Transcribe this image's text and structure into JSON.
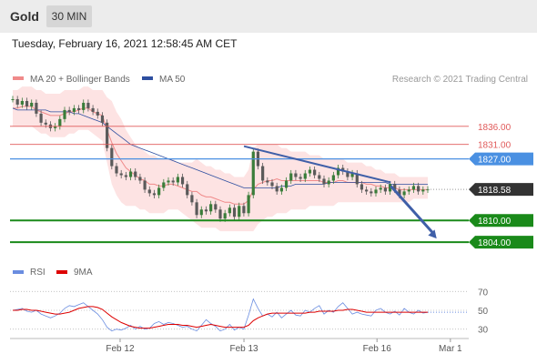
{
  "header": {
    "title": "Gold",
    "timeframe": "30 MIN"
  },
  "timestamp": "Tuesday, February 16, 2021 12:58:45 AM CET",
  "colors": {
    "resistance": "#e05a5a",
    "pivot": "#4a90e2",
    "support": "#1a8a1a",
    "price_tag": "#333333",
    "trendline": "#3f5fa8",
    "bollinger_fill": "#fde3e3",
    "ma20": "#f08a8a",
    "ma50": "#2e4fa0",
    "rsi": "#6a8de0",
    "rsi_ma": "#dd0000"
  },
  "chart_data": [
    {
      "type": "candlestick",
      "legend": [
        {
          "name": "MA 20 + Bollinger Bands",
          "color": "#f08a8a"
        },
        {
          "name": "MA 50",
          "color": "#2e4fa0"
        }
      ],
      "copyright": "Research © 2021 Trading Central",
      "ylim": [
        1800.5,
        1844.5
      ],
      "xlim": [
        0,
        100
      ],
      "x_ticks": [
        {
          "label": "Feb 12",
          "x": 24
        },
        {
          "label": "Feb 13",
          "x": 51
        },
        {
          "label": "Feb 16",
          "x": 80
        },
        {
          "label": "Mar 1",
          "x": 96
        }
      ],
      "levels": [
        {
          "label": "1836.00",
          "value": 1836.0,
          "kind": "resistance"
        },
        {
          "label": "1831.00",
          "value": 1831.0,
          "kind": "resistance"
        },
        {
          "label": "1827.00",
          "value": 1827.0,
          "kind": "pivot"
        },
        {
          "label": "1818.58",
          "value": 1818.58,
          "kind": "last_price"
        },
        {
          "label": "1810.00",
          "value": 1810.0,
          "kind": "support"
        },
        {
          "label": "1804.00",
          "value": 1804.0,
          "kind": "support"
        }
      ],
      "close": [
        1843.5,
        1842.0,
        1843.0,
        1841.5,
        1842.5,
        1839.5,
        1837.0,
        1836.5,
        1835.5,
        1836.0,
        1838.0,
        1840.5,
        1840.0,
        1841.0,
        1840.5,
        1842.5,
        1841.0,
        1840.0,
        1839.0,
        1837.0,
        1830.0,
        1825.0,
        1823.0,
        1822.5,
        1822.0,
        1823.5,
        1822.0,
        1821.0,
        1818.5,
        1817.5,
        1817.0,
        1819.0,
        1820.5,
        1821.0,
        1820.5,
        1822.0,
        1820.0,
        1817.0,
        1815.0,
        1811.5,
        1813.0,
        1812.5,
        1814.5,
        1813.0,
        1810.5,
        1812.0,
        1813.5,
        1811.0,
        1814.0,
        1812.0,
        1817.0,
        1829.0,
        1825.0,
        1821.0,
        1820.5,
        1819.5,
        1818.0,
        1819.0,
        1821.0,
        1823.0,
        1822.0,
        1821.5,
        1823.0,
        1824.0,
        1822.5,
        1821.5,
        1820.0,
        1821.0,
        1822.5,
        1824.5,
        1823.5,
        1822.0,
        1823.0,
        1820.0,
        1818.5,
        1818.0,
        1817.5,
        1818.5,
        1819.0,
        1818.0,
        1820.0,
        1818.5,
        1817.0,
        1818.0,
        1818.5,
        1819.5,
        1818.0,
        1818.5,
        1818.58
      ],
      "bollinger_upper": [
        1846,
        1846,
        1847,
        1847,
        1847,
        1846,
        1846,
        1845,
        1845,
        1845,
        1845,
        1846,
        1846,
        1846,
        1846,
        1847,
        1847,
        1846,
        1846,
        1846,
        1844,
        1843,
        1840,
        1838,
        1835,
        1833,
        1831,
        1830,
        1829,
        1828,
        1828,
        1827,
        1827,
        1827,
        1827,
        1826,
        1826,
        1826,
        1826,
        1827,
        1826,
        1825,
        1825,
        1824,
        1824,
        1823,
        1823,
        1822,
        1822,
        1822,
        1824,
        1830,
        1831,
        1831,
        1831,
        1831,
        1831,
        1830,
        1830,
        1829,
        1829,
        1829,
        1829,
        1828,
        1828,
        1828,
        1827,
        1827,
        1827,
        1827,
        1827,
        1826,
        1826,
        1826,
        1826,
        1825,
        1825,
        1824,
        1824,
        1823,
        1823,
        1823,
        1822,
        1822,
        1822,
        1822,
        1822,
        1822,
        1822
      ],
      "bollinger_lower": [
        1836,
        1836,
        1836,
        1836,
        1836,
        1835,
        1834,
        1834,
        1833,
        1833,
        1833,
        1833,
        1834,
        1834,
        1835,
        1835,
        1835,
        1834,
        1833,
        1832,
        1826,
        1820,
        1817,
        1815,
        1814,
        1814,
        1814,
        1813,
        1813,
        1812,
        1812,
        1812,
        1812,
        1813,
        1813,
        1813,
        1812,
        1811,
        1810,
        1809,
        1808,
        1808,
        1808,
        1808,
        1807,
        1807,
        1807,
        1807,
        1807,
        1807,
        1807,
        1807,
        1809,
        1810,
        1811,
        1811,
        1812,
        1812,
        1812,
        1813,
        1813,
        1813,
        1813,
        1814,
        1814,
        1814,
        1814,
        1814,
        1814,
        1815,
        1815,
        1815,
        1815,
        1815,
        1815,
        1815,
        1815,
        1815,
        1815,
        1815,
        1815,
        1815,
        1815,
        1815,
        1815,
        1816,
        1816,
        1816,
        1816
      ],
      "ma20": [
        1841,
        1841,
        1841.5,
        1841.5,
        1841.5,
        1840.5,
        1840,
        1839.5,
        1839,
        1839,
        1839,
        1839.5,
        1840,
        1840,
        1840.5,
        1841,
        1841,
        1840,
        1839.5,
        1839,
        1835,
        1831.5,
        1828.5,
        1826.5,
        1824.5,
        1823.5,
        1822.5,
        1821.5,
        1821,
        1820,
        1820,
        1819.5,
        1819.5,
        1820,
        1820,
        1819.5,
        1819,
        1818.5,
        1818,
        1818,
        1817,
        1816.5,
        1816.5,
        1816,
        1815.5,
        1815,
        1815,
        1814.5,
        1814.5,
        1814.5,
        1815.5,
        1818.5,
        1820,
        1820.5,
        1821,
        1821,
        1821.5,
        1821,
        1821,
        1821,
        1821,
        1821,
        1821,
        1821,
        1821,
        1821,
        1820.5,
        1820.5,
        1820.5,
        1821,
        1821,
        1820.5,
        1820.5,
        1820.5,
        1820.5,
        1820,
        1820,
        1819.5,
        1819.5,
        1819,
        1819,
        1819,
        1818.5,
        1818.5,
        1818.5,
        1818.5,
        1818.5,
        1818.5,
        1818.5
      ],
      "ma50": [
        1841,
        1840.5,
        1840.5,
        1840.5,
        1840.5,
        1840.5,
        1840.5,
        1840.5,
        1840,
        1840,
        1840,
        1840,
        1840,
        1839.5,
        1839.5,
        1839,
        1838.5,
        1838,
        1837.5,
        1837,
        1836,
        1835,
        1834,
        1833,
        1832,
        1831,
        1830.5,
        1830,
        1829.5,
        1829,
        1828.5,
        1828,
        1827.5,
        1827,
        1826.5,
        1826,
        1825.5,
        1825,
        1824.5,
        1824,
        1823.5,
        1823,
        1822.5,
        1822,
        1821.5,
        1821,
        1820.5,
        1820,
        1819.5,
        1819,
        1819,
        1819,
        1819,
        1819,
        1819,
        1819,
        1819,
        1819.5,
        1819.5,
        1819.5,
        1820,
        1820,
        1820,
        1820,
        1820,
        1820,
        1820,
        1820.5,
        1820.5,
        1820.5,
        1820.5,
        1820.5,
        1820.5,
        1820.5,
        1820.5,
        1820.5,
        1820.5,
        1820.5,
        1820.5,
        1820.5,
        1820,
        1820,
        1820,
        1820,
        1820,
        1820,
        1820,
        1820,
        1820
      ],
      "trendline": {
        "x": [
          51,
          83
        ],
        "y": [
          1830.5,
          1820.5
        ]
      },
      "projection": {
        "from": {
          "x": 83,
          "y": 1819.5
        },
        "to": {
          "x": 93,
          "y": 1805.0
        }
      }
    },
    {
      "type": "line",
      "legend": [
        {
          "name": "RSI",
          "color": "#6a8de0"
        },
        {
          "name": "9MA",
          "color": "#dd0000"
        }
      ],
      "ylim": [
        20,
        80
      ],
      "y_ticks": [
        70,
        50,
        30
      ],
      "rsi": [
        50,
        51,
        52,
        49,
        48,
        50,
        46,
        44,
        42,
        44,
        47,
        52,
        55,
        54,
        56,
        58,
        54,
        50,
        46,
        40,
        32,
        28,
        30,
        29,
        31,
        34,
        30,
        33,
        30,
        31,
        36,
        38,
        35,
        37,
        36,
        34,
        32,
        33,
        30,
        28,
        34,
        40,
        36,
        33,
        28,
        30,
        35,
        29,
        32,
        30,
        45,
        62,
        52,
        44,
        46,
        43,
        48,
        42,
        46,
        50,
        45,
        44,
        50,
        48,
        52,
        55,
        46,
        50,
        48,
        54,
        58,
        52,
        46,
        48,
        46,
        45,
        44,
        50,
        52,
        48,
        46,
        49,
        45,
        52,
        48,
        46,
        50,
        47,
        48
      ],
      "rsi_ma": [
        50,
        50,
        51,
        51,
        50,
        50,
        49,
        48,
        47,
        46,
        46,
        47,
        48,
        50,
        52,
        53,
        54,
        54,
        53,
        51,
        47,
        43,
        40,
        37,
        35,
        33,
        32,
        31,
        31,
        31,
        32,
        33,
        34,
        35,
        35,
        35,
        34,
        34,
        33,
        32,
        33,
        34,
        35,
        34,
        33,
        32,
        32,
        32,
        32,
        32,
        34,
        39,
        42,
        44,
        46,
        47,
        47,
        47,
        47,
        47,
        47,
        47,
        47,
        48,
        48,
        49,
        49,
        49,
        49,
        50,
        50,
        51,
        51,
        50,
        49,
        48,
        48,
        48,
        48,
        48,
        48,
        48,
        48,
        48,
        48,
        48,
        48,
        48,
        48
      ]
    }
  ]
}
